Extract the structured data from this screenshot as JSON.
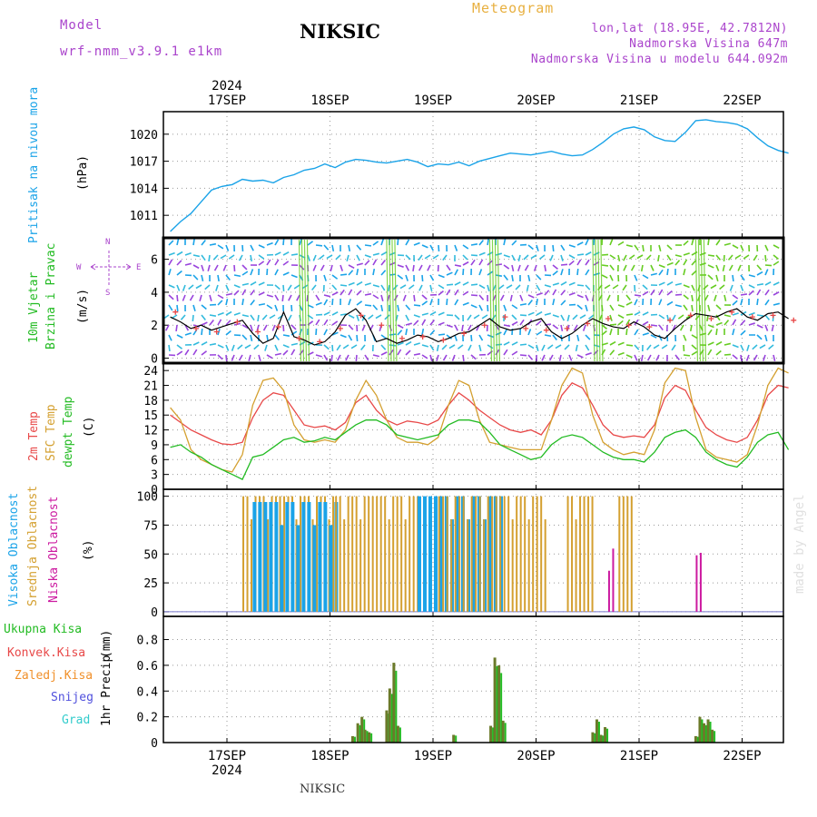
{
  "header": {
    "model_label": "Model",
    "model_name": "wrf-nmm_v3.9.1 e1km",
    "station": "NIKSIC",
    "product": "Meteogram",
    "coords": "lon,lat (18.95E, 42.7812N)",
    "elevation": "Nadmorska Visina 647m",
    "model_elevation": "Nadmorska Visina u modelu 644.092m"
  },
  "footer": {
    "station": "NIKSIC",
    "credit": "made by Angel"
  },
  "colors": {
    "pressure": "#1aa3e8",
    "wind_label": "#22bb22",
    "purple": "#aa44cc",
    "temp2m": "#e84848",
    "sfc": "#d4a030",
    "dew": "#22bb22",
    "high_cloud": "#1aa3e8",
    "mid_cloud": "#d4a030",
    "low_cloud": "#cc1aa0",
    "total_precip": "#22bb22",
    "conv_precip": "#e84848",
    "frz_precip": "#f0902a",
    "snow": "#5050dd",
    "hail": "#33cccc",
    "bar_fill": "#6b7a2a"
  },
  "chart_data": [
    {
      "type": "line",
      "panel": "pressure",
      "ylabel_main": "Pritisak na nivou mora",
      "unit": "(hPa)",
      "yticks": [
        1011,
        1014,
        1017,
        1020
      ],
      "ylim": [
        1008.5,
        1022.5
      ],
      "x_dates": [
        "17SEP",
        "18SEP",
        "19SEP",
        "20SEP",
        "21SEP",
        "22SEP"
      ],
      "x_year": "2024",
      "series": [
        {
          "x": [
            -0.55,
            -0.45,
            -0.35,
            -0.25,
            -0.15,
            -0.05,
            0.05,
            0.15,
            0.25,
            0.35,
            0.45,
            0.55,
            0.65,
            0.75,
            0.85,
            0.95,
            1.05,
            1.15,
            1.25,
            1.35,
            1.45,
            1.55,
            1.65,
            1.75,
            1.85,
            1.95,
            2.05,
            2.15,
            2.25,
            2.35,
            2.45,
            2.55,
            2.65,
            2.75,
            2.85,
            2.95,
            3.05,
            3.15,
            3.25,
            3.35,
            3.45,
            3.55,
            3.65,
            3.75,
            3.85,
            3.95,
            4.05,
            4.15,
            4.25,
            4.35,
            4.45,
            4.55,
            4.65,
            4.75,
            4.85,
            4.95,
            5.05,
            5.15,
            5.25,
            5.35,
            5.45
          ],
          "values": [
            1009.2,
            1010.3,
            1011.2,
            1012.5,
            1013.8,
            1014.2,
            1014.4,
            1015.0,
            1014.8,
            1014.9,
            1014.6,
            1015.2,
            1015.5,
            1016.0,
            1016.2,
            1016.7,
            1016.3,
            1016.9,
            1017.2,
            1017.1,
            1016.9,
            1016.8,
            1017.0,
            1017.2,
            1016.9,
            1016.4,
            1016.7,
            1016.6,
            1016.9,
            1016.5,
            1017.0,
            1017.3,
            1017.6,
            1017.9,
            1017.8,
            1017.7,
            1017.9,
            1018.1,
            1017.8,
            1017.6,
            1017.7,
            1018.3,
            1019.1,
            1020.0,
            1020.6,
            1020.8,
            1020.5,
            1019.7,
            1019.3,
            1019.2,
            1020.2,
            1021.5,
            1021.6,
            1021.4,
            1021.3,
            1021.1,
            1020.6,
            1019.6,
            1018.7,
            1018.2,
            1017.9
          ]
        }
      ]
    },
    {
      "type": "line",
      "panel": "wind",
      "ylabel_main": "10m Vjetar",
      "ylabel_sub": "Brzina i Pravac",
      "unit": "(m/s)",
      "compass": {
        "north": "N",
        "east": "E",
        "west": "W",
        "south": "S"
      },
      "yticks": [
        0,
        2,
        4,
        6
      ],
      "ylim": [
        -0.3,
        7.3
      ],
      "series": [
        {
          "x": [
            -0.55,
            -0.45,
            -0.35,
            -0.25,
            -0.15,
            -0.05,
            0.05,
            0.15,
            0.25,
            0.35,
            0.45,
            0.55,
            0.65,
            0.75,
            0.85,
            0.95,
            1.05,
            1.15,
            1.25,
            1.35,
            1.45,
            1.55,
            1.65,
            1.75,
            1.85,
            1.95,
            2.05,
            2.15,
            2.25,
            2.35,
            2.45,
            2.55,
            2.65,
            2.75,
            2.85,
            2.95,
            3.05,
            3.15,
            3.25,
            3.35,
            3.45,
            3.55,
            3.65,
            3.75,
            3.85,
            3.95,
            4.05,
            4.15,
            4.25,
            4.35,
            4.45,
            4.55,
            4.65,
            4.75,
            4.85,
            4.95,
            5.05,
            5.15,
            5.25,
            5.35,
            5.45
          ],
          "values": [
            2.5,
            2.2,
            1.8,
            2.0,
            1.7,
            1.9,
            2.1,
            2.3,
            1.5,
            0.9,
            1.2,
            2.8,
            1.3,
            1.1,
            0.8,
            1.0,
            1.6,
            2.6,
            3.0,
            2.3,
            1.0,
            1.2,
            0.9,
            1.1,
            1.4,
            1.3,
            1.0,
            1.2,
            1.5,
            1.6,
            2.0,
            2.4,
            1.9,
            1.7,
            1.8,
            2.2,
            2.4,
            1.6,
            1.2,
            1.5,
            2.0,
            2.4,
            2.1,
            1.9,
            1.8,
            2.2,
            1.9,
            1.4,
            1.2,
            1.8,
            2.3,
            2.7,
            2.6,
            2.5,
            2.8,
            3.0,
            2.5,
            2.3,
            2.7,
            2.8,
            2.4
          ]
        }
      ],
      "gusts": [
        2.8,
        1.8,
        1.6,
        2.2,
        1.6,
        1.9,
        1.2,
        1.0,
        1.8,
        2.6,
        2.0,
        1.2,
        1.3,
        1.1,
        1.5,
        2.0,
        2.5,
        1.8,
        1.7,
        1.8,
        2.1,
        2.4,
        2.0,
        1.9,
        2.3,
        2.6,
        2.4,
        2.8,
        2.5,
        2.6,
        2.3
      ]
    },
    {
      "type": "line",
      "panel": "temperature",
      "ylabel_1": "2m Temp",
      "ylabel_2": "SFC Temp",
      "ylabel_3": "dewpt Temp",
      "unit": "(C)",
      "yticks": [
        0,
        3,
        6,
        9,
        12,
        15,
        18,
        21,
        24
      ],
      "ylim": [
        0,
        25.5
      ],
      "x": [
        -0.55,
        -0.45,
        -0.35,
        -0.25,
        -0.15,
        -0.05,
        0.05,
        0.15,
        0.25,
        0.35,
        0.45,
        0.55,
        0.65,
        0.75,
        0.85,
        0.95,
        1.05,
        1.15,
        1.25,
        1.35,
        1.45,
        1.55,
        1.65,
        1.75,
        1.85,
        1.95,
        2.05,
        2.15,
        2.25,
        2.35,
        2.45,
        2.55,
        2.65,
        2.75,
        2.85,
        2.95,
        3.05,
        3.15,
        3.25,
        3.35,
        3.45,
        3.55,
        3.65,
        3.75,
        3.85,
        3.95,
        4.05,
        4.15,
        4.25,
        4.35,
        4.45,
        4.55,
        4.65,
        4.75,
        4.85,
        4.95,
        5.05,
        5.15,
        5.25,
        5.35,
        5.45
      ],
      "series": [
        {
          "name": "2m Temp",
          "values": [
            15.0,
            13.5,
            12.0,
            11.0,
            10.0,
            9.2,
            9.0,
            9.5,
            14.5,
            18.0,
            19.5,
            19.0,
            16.0,
            13.0,
            12.5,
            12.8,
            12.0,
            13.5,
            17.5,
            19.0,
            16.0,
            14.0,
            13.0,
            13.8,
            13.5,
            13.0,
            14.0,
            17.0,
            19.5,
            18.0,
            16.0,
            14.5,
            13.0,
            12.0,
            11.5,
            12.0,
            11.0,
            14.0,
            19.0,
            21.5,
            20.5,
            17.0,
            13.0,
            11.0,
            10.5,
            10.8,
            10.5,
            13.0,
            18.5,
            21.0,
            20.0,
            16.0,
            12.5,
            11.0,
            10.0,
            9.5,
            10.5,
            14.0,
            19.0,
            21.0,
            20.5
          ]
        },
        {
          "name": "SFC Temp",
          "values": [
            16.5,
            14.0,
            8.0,
            6.0,
            5.0,
            4.0,
            3.5,
            7.0,
            17.0,
            22.0,
            22.5,
            20.0,
            13.0,
            10.0,
            9.5,
            10.0,
            9.5,
            12.0,
            18.0,
            22.0,
            19.0,
            14.0,
            10.5,
            9.5,
            9.5,
            9.0,
            10.5,
            17.0,
            22.0,
            21.0,
            14.0,
            9.5,
            9.0,
            8.5,
            8.0,
            8.0,
            8.0,
            14.0,
            21.0,
            24.5,
            23.5,
            15.0,
            9.5,
            8.0,
            7.0,
            7.5,
            7.0,
            12.0,
            21.5,
            24.5,
            24.0,
            14.5,
            8.0,
            6.5,
            6.0,
            5.5,
            7.0,
            13.0,
            21.0,
            24.5,
            23.5
          ]
        },
        {
          "name": "dewpt Temp",
          "values": [
            8.5,
            9.0,
            7.5,
            6.5,
            5.0,
            4.0,
            3.0,
            2.0,
            6.5,
            7.0,
            8.5,
            10.0,
            10.5,
            9.5,
            9.8,
            10.5,
            10.0,
            11.5,
            13.0,
            14.0,
            14.0,
            13.0,
            11.0,
            10.5,
            10.0,
            10.5,
            11.0,
            13.0,
            14.0,
            14.0,
            13.5,
            11.5,
            9.0,
            8.0,
            7.0,
            6.0,
            6.5,
            9.0,
            10.5,
            11.0,
            10.5,
            9.0,
            7.5,
            6.5,
            6.0,
            6.0,
            5.5,
            7.5,
            10.5,
            11.5,
            12.0,
            10.5,
            7.5,
            6.0,
            5.0,
            4.5,
            6.5,
            9.5,
            11.0,
            11.5,
            8.0
          ]
        }
      ]
    },
    {
      "type": "bar",
      "panel": "cloud",
      "ylabel_1": "Visoka Oblacnost",
      "ylabel_2": "Srednja Oblacnost",
      "ylabel_3": "Niska Oblacnost",
      "unit": "(%)",
      "yticks": [
        0,
        25,
        50,
        75,
        100
      ],
      "ylim": [
        -4,
        106
      ],
      "segments": [
        {
          "x_from": 0.15,
          "x_to": 1.05,
          "series": "Srednja Oblacnost",
          "level": 100
        },
        {
          "x_from": 0.25,
          "x_to": 1.05,
          "series": "Visoka Oblacnost",
          "level": 95
        },
        {
          "x_from": 1.05,
          "x_to": 1.85,
          "series": "Srednja Oblacnost",
          "level": 100
        },
        {
          "x_from": 1.85,
          "x_to": 2.65,
          "series": "Visoka Oblacnost",
          "level": 100
        },
        {
          "x_from": 2.05,
          "x_to": 3.1,
          "series": "Srednja Oblacnost",
          "level": 100
        },
        {
          "x_from": 3.3,
          "x_to": 3.55,
          "series": "Srednja Oblacnost",
          "level": 100
        },
        {
          "x_from": 3.7,
          "x_to": 3.75,
          "series": "Niska Oblacnost",
          "level": 55
        },
        {
          "x_from": 3.8,
          "x_to": 3.95,
          "series": "Srednja Oblacnost",
          "level": 100
        },
        {
          "x_from": 4.55,
          "x_to": 4.6,
          "series": "Niska Oblacnost",
          "level": 75
        }
      ]
    },
    {
      "type": "bar",
      "panel": "precipitation",
      "legend": [
        "Ukupna Kisa",
        "Konvek.Kisa",
        "Zaledj.Kisa",
        "Snijeg",
        "Grad"
      ],
      "ylabel": "1hr Precip",
      "unit": "(mm)",
      "yticks": [
        0,
        0.2,
        0.4,
        0.6,
        0.8
      ],
      "ylim": [
        0,
        0.98
      ],
      "bars": [
        {
          "x": 1.22,
          "value": 0.05
        },
        {
          "x": 1.27,
          "value": 0.15
        },
        {
          "x": 1.31,
          "value": 0.2
        },
        {
          "x": 1.34,
          "value": 0.1
        },
        {
          "x": 1.38,
          "value": 0.08
        },
        {
          "x": 1.55,
          "value": 0.25
        },
        {
          "x": 1.58,
          "value": 0.42
        },
        {
          "x": 1.62,
          "value": 0.62
        },
        {
          "x": 1.66,
          "value": 0.13
        },
        {
          "x": 2.2,
          "value": 0.06
        },
        {
          "x": 2.56,
          "value": 0.13
        },
        {
          "x": 2.6,
          "value": 0.66
        },
        {
          "x": 2.64,
          "value": 0.6
        },
        {
          "x": 2.68,
          "value": 0.17
        },
        {
          "x": 3.55,
          "value": 0.08
        },
        {
          "x": 3.59,
          "value": 0.18
        },
        {
          "x": 3.63,
          "value": 0.06
        },
        {
          "x": 3.67,
          "value": 0.12
        },
        {
          "x": 4.55,
          "value": 0.05
        },
        {
          "x": 4.59,
          "value": 0.2
        },
        {
          "x": 4.63,
          "value": 0.15
        },
        {
          "x": 4.67,
          "value": 0.18
        },
        {
          "x": 4.71,
          "value": 0.1
        }
      ]
    }
  ]
}
